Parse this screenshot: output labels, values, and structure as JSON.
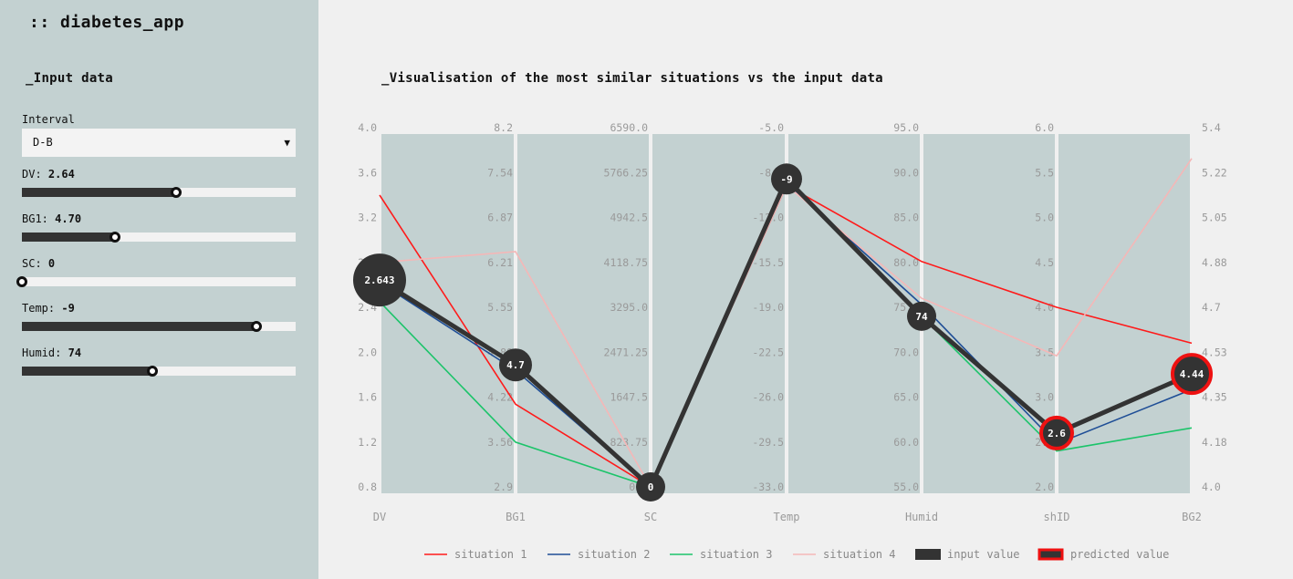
{
  "app": {
    "title": ":: diabetes_app"
  },
  "sidebar": {
    "section_title": "_Input data",
    "interval": {
      "label": "Interval",
      "value": "D-B",
      "arrow": "▼"
    },
    "sliders": [
      {
        "name": "DV",
        "label": "DV:",
        "value_text": "2.64",
        "fraction": 0.565
      },
      {
        "name": "BG1",
        "label": "BG1:",
        "value_text": "4.70",
        "fraction": 0.34
      },
      {
        "name": "SC",
        "label": "SC:",
        "value_text": "0",
        "fraction": 0.0
      },
      {
        "name": "Temp",
        "label": "Temp:",
        "value_text": "-9",
        "fraction": 0.857
      },
      {
        "name": "Humid",
        "label": "Humid:",
        "value_text": "74",
        "fraction": 0.476
      }
    ]
  },
  "main": {
    "title": "_Visualisation of the most similar situations vs the input data"
  },
  "colors": {
    "panel": "#c3d1d1",
    "situation_1": "#ff1a1a",
    "situation_2": "#1f4e96",
    "situation_3": "#1cc46a",
    "situation_4": "#f5b7b7",
    "input": "#333333",
    "predicted_border": "#ee1111"
  },
  "chart_data": {
    "type": "parallel-coordinates",
    "axes": [
      {
        "name": "DV",
        "ticks": [
          "4.0",
          "3.6",
          "3.2",
          "2.8",
          "2.4",
          "2.0",
          "1.6",
          "1.2",
          "0.8"
        ],
        "range": [
          0.8,
          4.0
        ],
        "tick_side": "left"
      },
      {
        "name": "BG1",
        "ticks": [
          "8.2",
          "7.54",
          "6.87",
          "6.21",
          "5.55",
          "4.89",
          "4.22",
          "3.56",
          "2.9"
        ],
        "range": [
          2.9,
          8.2
        ],
        "tick_side": "left"
      },
      {
        "name": "SC",
        "ticks": [
          "6590.0",
          "5766.25",
          "4942.5",
          "4118.75",
          "3295.0",
          "2471.25",
          "1647.5",
          "823.75",
          "0.0"
        ],
        "range": [
          0.0,
          6590.0
        ],
        "tick_side": "left"
      },
      {
        "name": "Temp",
        "ticks": [
          "-5.0",
          "-8.5",
          "-12.0",
          "-15.5",
          "-19.0",
          "-22.5",
          "-26.0",
          "-29.5",
          "-33.0"
        ],
        "range": [
          -33.0,
          -5.0
        ],
        "tick_side": "left"
      },
      {
        "name": "Humid",
        "ticks": [
          "95.0",
          "90.0",
          "85.0",
          "80.0",
          "75.0",
          "70.0",
          "65.0",
          "60.0",
          "55.0"
        ],
        "range": [
          55.0,
          95.0
        ],
        "tick_side": "left"
      },
      {
        "name": "shID",
        "ticks": [
          "6.0",
          "5.5",
          "5.0",
          "4.5",
          "4.0",
          "3.5",
          "3.0",
          "2.5",
          "2.0"
        ],
        "range": [
          2.0,
          6.0
        ],
        "tick_side": "left"
      },
      {
        "name": "BG2",
        "ticks": [
          "5.4",
          "5.22",
          "5.05",
          "4.88",
          "4.7",
          "4.53",
          "4.35",
          "4.18",
          "4.0"
        ],
        "range": [
          4.0,
          5.4
        ],
        "tick_side": "right"
      }
    ],
    "series": [
      {
        "name": "situation 1",
        "color_key": "situation_1",
        "values": [
          3.4,
          4.12,
          0,
          -9.5,
          80.1,
          4.0,
          4.56
        ]
      },
      {
        "name": "situation 2",
        "color_key": "situation_2",
        "values": [
          2.62,
          4.62,
          0,
          -9.3,
          75.3,
          2.48,
          4.38
        ]
      },
      {
        "name": "situation 3",
        "color_key": "situation_3",
        "values": [
          2.45,
          3.56,
          0,
          -9.0,
          74.0,
          2.4,
          4.23
        ]
      },
      {
        "name": "situation 4",
        "color_key": "situation_4",
        "values": [
          2.8,
          6.37,
          0,
          -9.5,
          76.0,
          3.46,
          5.28
        ]
      }
    ],
    "input": {
      "name": "input value",
      "values": [
        2.643,
        4.7,
        0,
        -9,
        74
      ]
    },
    "predicted": {
      "name": "predicted value",
      "values": [
        2.6,
        4.44
      ]
    },
    "node_labels": [
      "2.643",
      "4.7",
      "0",
      "-9",
      "74",
      "2.6",
      "4.44"
    ],
    "legend": [
      "situation 1",
      "situation 2",
      "situation 3",
      "situation 4",
      "input value",
      "predicted value"
    ],
    "legend_placement": "bottom"
  }
}
